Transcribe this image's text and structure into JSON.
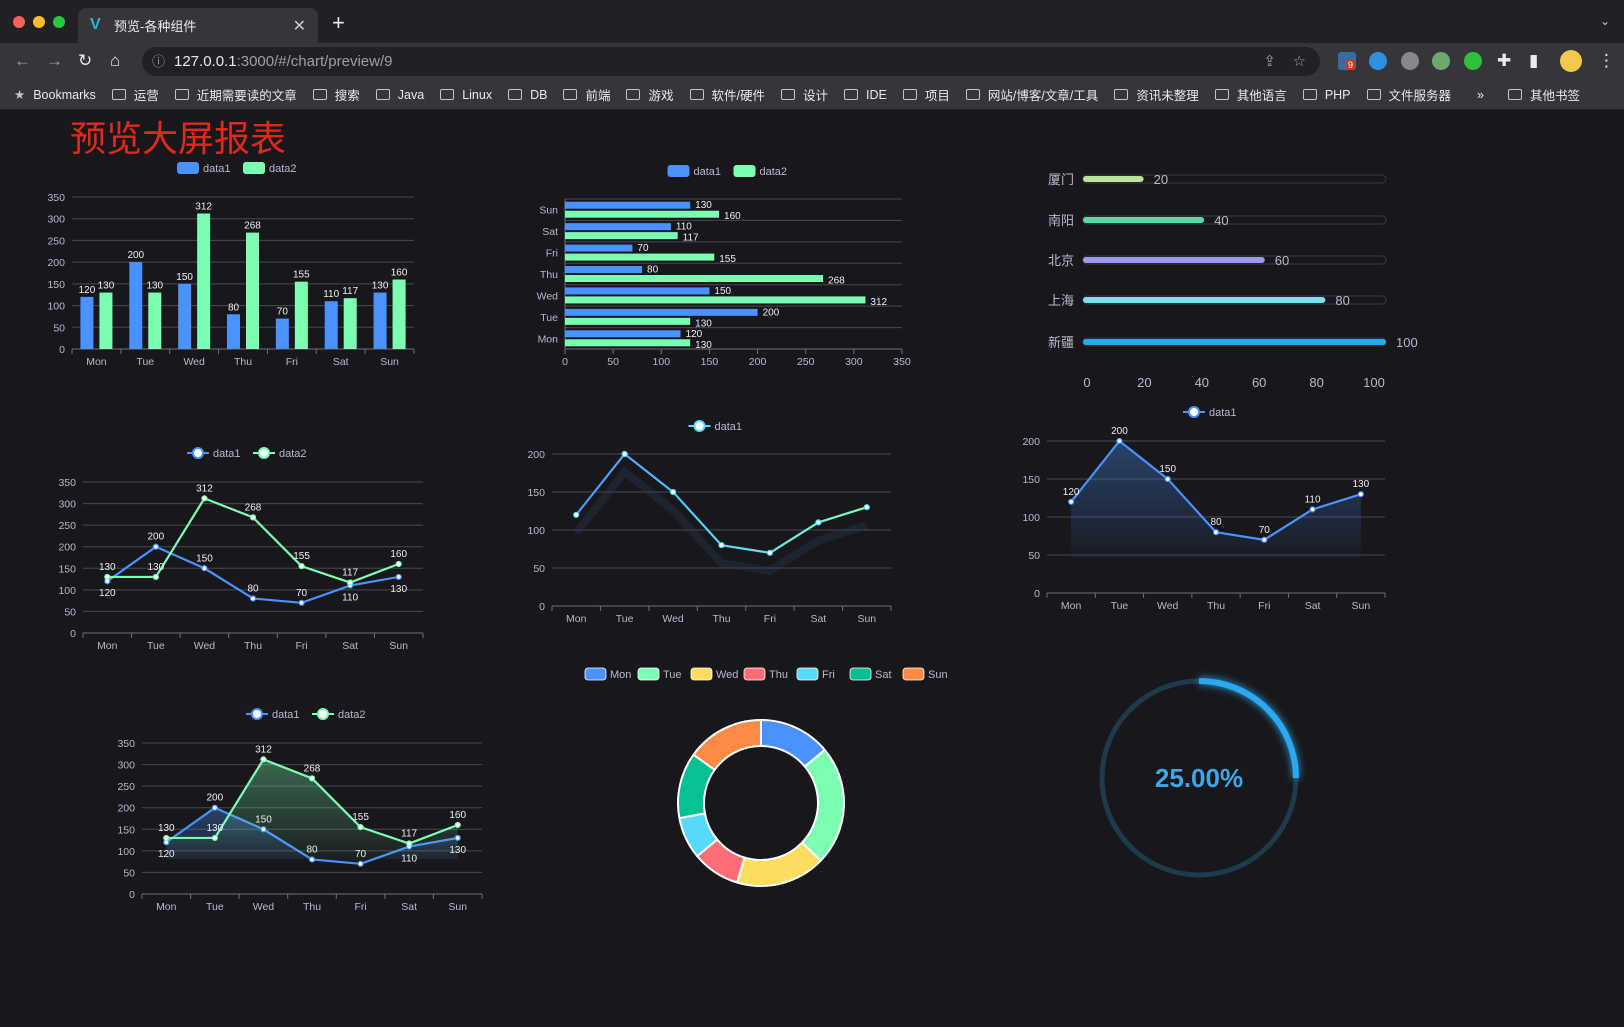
{
  "browser": {
    "tab_title": "预览-各种组件",
    "url_host": "127.0.0.1",
    "url_rest": ":3000/#/chart/preview/9",
    "extension_badge": "9",
    "bookmarks": [
      "Bookmarks",
      "运营",
      "近期需要读的文章",
      "搜索",
      "Java",
      "Linux",
      "DB",
      "前端",
      "游戏",
      "软件/硬件",
      "设计",
      "IDE",
      "项目",
      "网站/博客/文章/工具",
      "资讯未整理",
      "其他语言",
      "PHP",
      "文件服务器"
    ],
    "more": "»",
    "other_bookmarks": "其他书签"
  },
  "page": {
    "title": "预览大屏报表",
    "title_color": "#e0281b",
    "background": "#18181c"
  },
  "chart_data": [
    {
      "type": "bar",
      "orientation": "vertical",
      "categories": [
        "Mon",
        "Tue",
        "Wed",
        "Thu",
        "Fri",
        "Sat",
        "Sun"
      ],
      "series": [
        {
          "name": "data1",
          "values": [
            120,
            200,
            150,
            80,
            70,
            110,
            130
          ],
          "color": "#4992ff"
        },
        {
          "name": "data2",
          "values": [
            130,
            130,
            312,
            268,
            155,
            117,
            160
          ],
          "color": "#7cffb2"
        }
      ],
      "ylim": [
        0,
        350
      ],
      "yticks": [
        0,
        50,
        100,
        150,
        200,
        250,
        300,
        350
      ],
      "legend": "top",
      "data_labels": true
    },
    {
      "type": "bar",
      "orientation": "horizontal",
      "categories": [
        "Mon",
        "Tue",
        "Wed",
        "Thu",
        "Fri",
        "Sat",
        "Sun"
      ],
      "series": [
        {
          "name": "data1",
          "values": [
            120,
            200,
            150,
            80,
            70,
            110,
            130
          ],
          "color": "#4992ff"
        },
        {
          "name": "data2",
          "values": [
            130,
            130,
            312,
            268,
            155,
            117,
            160
          ],
          "color": "#7cffb2"
        }
      ],
      "xlim": [
        0,
        350
      ],
      "xticks": [
        0,
        50,
        100,
        150,
        200,
        250,
        300,
        350
      ],
      "legend": "top",
      "data_labels": true
    },
    {
      "type": "bar",
      "orientation": "progress",
      "categories": [
        "厦门",
        "南阳",
        "北京",
        "上海",
        "新疆"
      ],
      "values": [
        20,
        40,
        60,
        80,
        100
      ],
      "colors": [
        "#b9e39a",
        "#58d9a7",
        "#9a98f0",
        "#7de0f0",
        "#2ba8f0"
      ],
      "xlim": [
        0,
        100
      ],
      "xticks": [
        0,
        20,
        40,
        60,
        80,
        100
      ]
    },
    {
      "type": "line",
      "categories": [
        "Mon",
        "Tue",
        "Wed",
        "Thu",
        "Fri",
        "Sat",
        "Sun"
      ],
      "series": [
        {
          "name": "data1",
          "values": [
            120,
            200,
            150,
            80,
            70,
            110,
            130
          ],
          "color": "#4992ff"
        },
        {
          "name": "data2",
          "values": [
            130,
            130,
            312,
            268,
            155,
            117,
            160
          ],
          "color": "#7cffb2"
        }
      ],
      "ylim": [
        0,
        350
      ],
      "yticks": [
        0,
        50,
        100,
        150,
        200,
        250,
        300,
        350
      ],
      "legend": "top",
      "data_labels": true
    },
    {
      "type": "line",
      "smooth": false,
      "gradient": [
        "#4992ff",
        "#58d9f9",
        "#7cffb2"
      ],
      "categories": [
        "Mon",
        "Tue",
        "Wed",
        "Thu",
        "Fri",
        "Sat",
        "Sun"
      ],
      "series": [
        {
          "name": "data1",
          "values": [
            120,
            200,
            150,
            80,
            70,
            110,
            130
          ],
          "color": "#58d9f9"
        }
      ],
      "ylim": [
        0,
        200
      ],
      "yticks": [
        0,
        50,
        100,
        150,
        200
      ],
      "legend": "top",
      "data_labels": false
    },
    {
      "type": "area",
      "categories": [
        "Mon",
        "Tue",
        "Wed",
        "Thu",
        "Fri",
        "Sat",
        "Sun"
      ],
      "series": [
        {
          "name": "data1",
          "values": [
            120,
            200,
            150,
            80,
            70,
            110,
            130
          ],
          "color": "#4992ff"
        }
      ],
      "ylim": [
        0,
        200
      ],
      "yticks": [
        0,
        50,
        100,
        150,
        200
      ],
      "legend": "top",
      "data_labels": true
    },
    {
      "type": "area",
      "categories": [
        "Mon",
        "Tue",
        "Wed",
        "Thu",
        "Fri",
        "Sat",
        "Sun"
      ],
      "series": [
        {
          "name": "data1",
          "values": [
            120,
            200,
            150,
            80,
            70,
            110,
            130
          ],
          "color": "#4992ff"
        },
        {
          "name": "data2",
          "values": [
            130,
            130,
            312,
            268,
            155,
            117,
            160
          ],
          "color": "#7cffb2"
        }
      ],
      "ylim": [
        0,
        350
      ],
      "yticks": [
        0,
        50,
        100,
        150,
        200,
        250,
        300,
        350
      ],
      "legend": "top",
      "data_labels": true
    },
    {
      "type": "pie",
      "donut": true,
      "categories": [
        "Mon",
        "Tue",
        "Wed",
        "Thu",
        "Fri",
        "Sat",
        "Sun"
      ],
      "values": [
        120,
        200,
        150,
        80,
        70,
        110,
        130
      ],
      "colors": [
        "#4992ff",
        "#7cffb2",
        "#fddd60",
        "#ff6e76",
        "#58d9f9",
        "#05c091",
        "#ff8a45"
      ],
      "legend": "top"
    },
    {
      "type": "gauge",
      "value": 0.25,
      "label": "25.00%",
      "color": "#2ba8f0",
      "track": "#1f3a4a"
    }
  ]
}
